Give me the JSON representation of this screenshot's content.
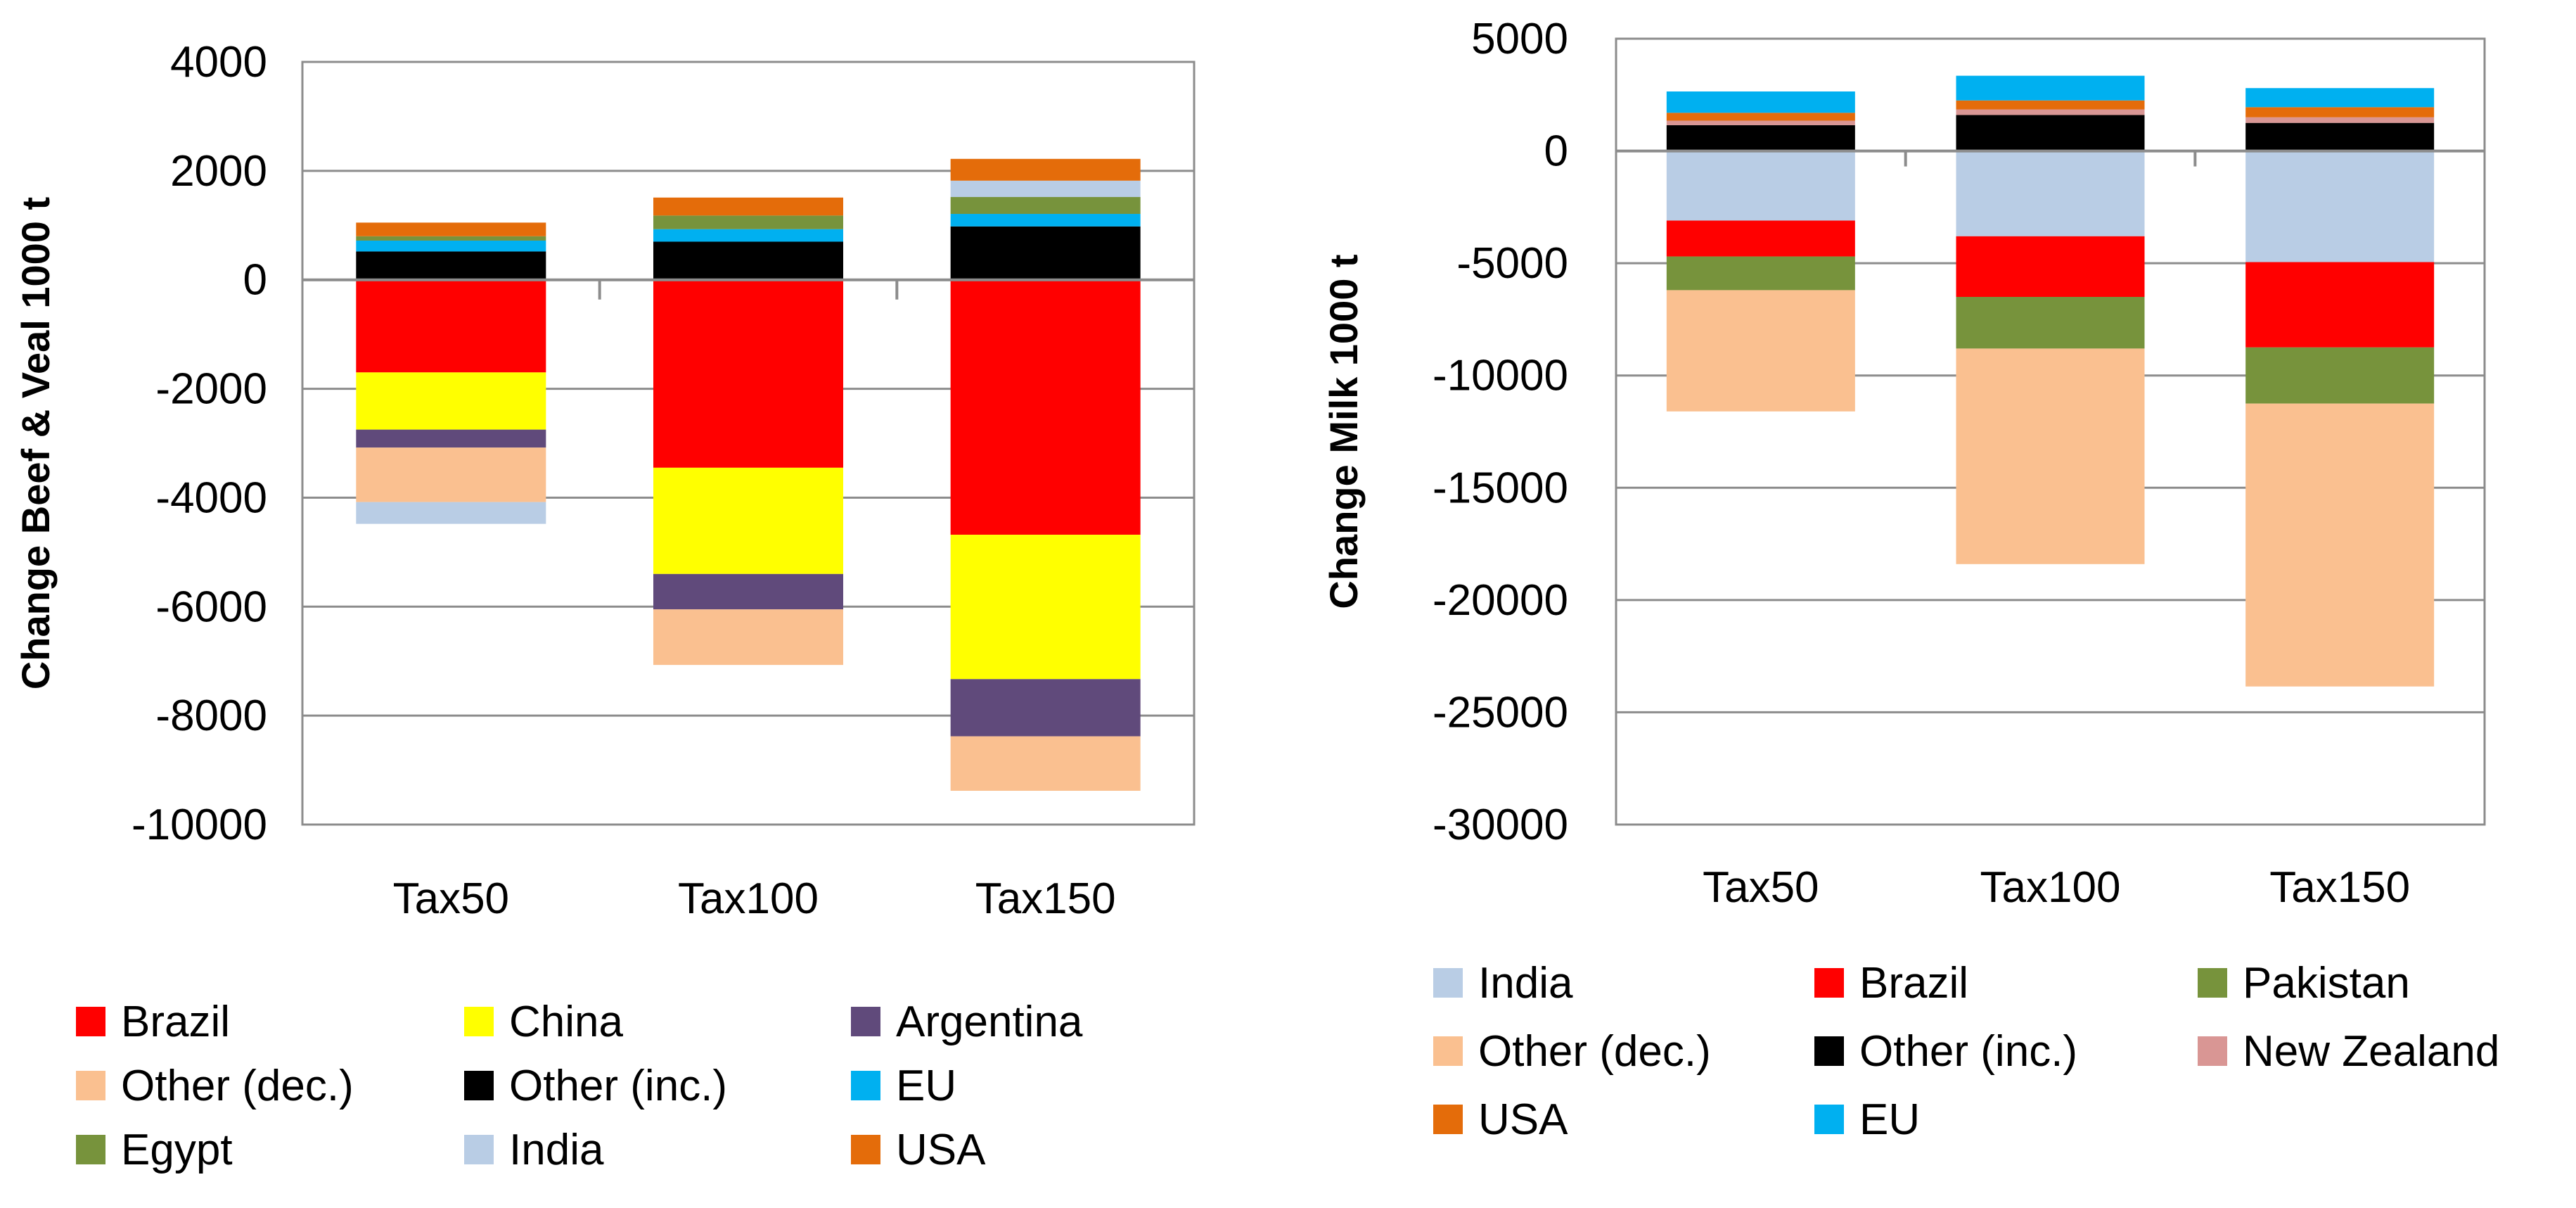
{
  "chart_data": [
    {
      "type": "bar",
      "stacked": true,
      "title": "",
      "xlabel": "",
      "ylabel": "Change Beef & Veal 1000 t",
      "ylim": [
        -10000,
        4000
      ],
      "yticks": [
        4000,
        2000,
        0,
        -2000,
        -4000,
        -6000,
        -8000,
        -10000
      ],
      "grid": true,
      "categories": [
        "Tax50",
        "Tax100",
        "Tax150"
      ],
      "series": [
        {
          "name": "Brazil",
          "color": "#FF0000",
          "values": [
            -1700,
            -3450,
            -4680
          ]
        },
        {
          "name": "China",
          "color": "#FFFF00",
          "values": [
            -1050,
            -1950,
            -2650
          ]
        },
        {
          "name": "Argentina",
          "color": "#604A7B",
          "values": [
            -330,
            -650,
            -1050
          ]
        },
        {
          "name": "Other (dec.)",
          "color": "#FAC090",
          "values": [
            -1000,
            -1020,
            -1000
          ]
        },
        {
          "name": "Other (inc.)",
          "color": "#000000",
          "values": [
            520,
            700,
            980
          ]
        },
        {
          "name": "EU",
          "color": "#00B0F0",
          "values": [
            200,
            230,
            230
          ]
        },
        {
          "name": "Egypt",
          "color": "#77933C",
          "values": [
            80,
            250,
            310
          ]
        },
        {
          "name": "India",
          "color": "#B9CDE5",
          "values": [
            -400,
            0,
            300
          ]
        },
        {
          "name": "USA",
          "color": "#E46C0A",
          "values": [
            250,
            330,
            400
          ]
        }
      ],
      "legend": {
        "placement": "bottom",
        "entries": [
          "Brazil",
          "China",
          "Argentina",
          "Other (dec.)",
          "Other (inc.)",
          "EU",
          "Egypt",
          "India",
          "USA"
        ]
      }
    },
    {
      "type": "bar",
      "stacked": true,
      "title": "",
      "xlabel": "",
      "ylabel": "Change Milk 1000 t",
      "ylim": [
        -30000,
        5000
      ],
      "yticks": [
        5000,
        0,
        -5000,
        -10000,
        -15000,
        -20000,
        -25000,
        -30000
      ],
      "grid": true,
      "categories": [
        "Tax50",
        "Tax100",
        "Tax150"
      ],
      "series": [
        {
          "name": "India",
          "color": "#B9CDE5",
          "values": [
            -3100,
            -3800,
            -4950
          ]
        },
        {
          "name": "Brazil",
          "color": "#FF0000",
          "values": [
            -1600,
            -2700,
            -3800
          ]
        },
        {
          "name": "Pakistan",
          "color": "#77933C",
          "values": [
            -1500,
            -2300,
            -2500
          ]
        },
        {
          "name": "Other (dec.)",
          "color": "#FAC090",
          "values": [
            -5400,
            -9600,
            -12600
          ]
        },
        {
          "name": "Other (inc.)",
          "color": "#000000",
          "values": [
            1150,
            1600,
            1250
          ]
        },
        {
          "name": "New Zealand",
          "color": "#D99694",
          "values": [
            200,
            250,
            250
          ]
        },
        {
          "name": "USA",
          "color": "#E46C0A",
          "values": [
            350,
            400,
            450
          ]
        },
        {
          "name": "EU",
          "color": "#00B0F0",
          "values": [
            950,
            1100,
            850
          ]
        }
      ],
      "legend": {
        "placement": "bottom",
        "entries": [
          "India",
          "Brazil",
          "Pakistan",
          "Other (dec.)",
          "Other (inc.)",
          "New Zealand",
          "USA",
          "EU"
        ]
      }
    }
  ]
}
